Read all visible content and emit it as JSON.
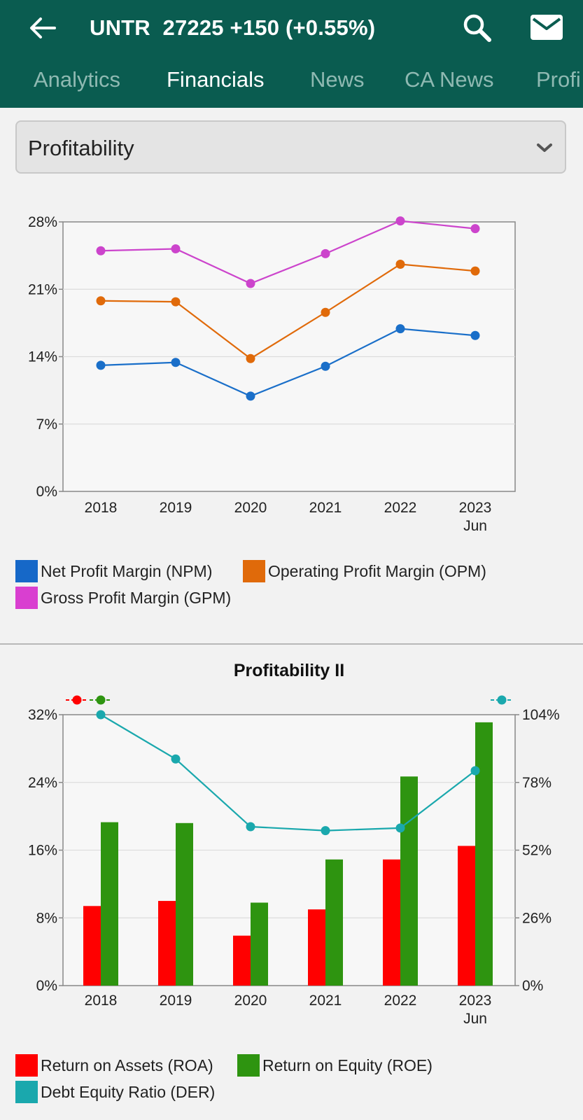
{
  "header": {
    "ticker_line": "UNTR  27225 +150 (+0.55%)",
    "back_icon": "arrow-left-icon",
    "search_icon": "search-icon",
    "mail_icon": "mail-icon",
    "bg_color": "#0a5c50"
  },
  "tabs": [
    {
      "label": "Analytics",
      "active": false
    },
    {
      "label": "Financials",
      "active": true
    },
    {
      "label": "News",
      "active": false
    },
    {
      "label": "CA News",
      "active": false
    },
    {
      "label": "Profi",
      "active": false
    }
  ],
  "dropdown": {
    "selected": "Profitability",
    "icon": "chevron-down-icon"
  },
  "chart_data": [
    {
      "type": "line",
      "title": "",
      "categories": [
        "2018",
        "2019",
        "2020",
        "2021",
        "2022",
        "2023\nJun"
      ],
      "y_ticks": [
        "0%",
        "7%",
        "14%",
        "21%",
        "28%"
      ],
      "ylim": [
        0,
        28
      ],
      "unit": "%",
      "grid": true,
      "legend_position": "bottom",
      "series": [
        {
          "name": "Net Profit Margin (NPM)",
          "color": "#1a6fc9",
          "values": [
            13.1,
            13.4,
            9.9,
            13.0,
            16.9,
            16.2
          ]
        },
        {
          "name": "Operating Profit Margin (OPM)",
          "color": "#e06a0a",
          "values": [
            19.8,
            19.7,
            13.8,
            18.6,
            23.6,
            22.9
          ]
        },
        {
          "name": "Gross Profit Margin (GPM)",
          "color": "#cc44cc",
          "values": [
            25.0,
            25.2,
            21.6,
            24.7,
            28.1,
            27.3
          ]
        }
      ],
      "legend_swatches": [
        "#1668c8",
        "#e06a0a",
        "#d93fd0"
      ]
    },
    {
      "type": "bar",
      "title": "Profitability II",
      "categories": [
        "2018",
        "2019",
        "2020",
        "2021",
        "2022",
        "2023\nJun"
      ],
      "y_ticks": [
        "0%",
        "8%",
        "16%",
        "24%",
        "32%"
      ],
      "y2_ticks": [
        "0%",
        "26%",
        "52%",
        "78%",
        "104%"
      ],
      "ylim": [
        0,
        32
      ],
      "y2lim": [
        0,
        104
      ],
      "grid": true,
      "legend_position": "bottom",
      "series": [
        {
          "name": "Return on Assets (ROA)",
          "color": "#ff0000",
          "axis": "left",
          "kind": "bar",
          "values": [
            9.4,
            10.0,
            5.9,
            9.0,
            14.9,
            16.5
          ]
        },
        {
          "name": "Return on Equity (ROE)",
          "color": "#2e9410",
          "axis": "left",
          "kind": "bar",
          "values": [
            19.3,
            19.2,
            9.8,
            14.9,
            24.7,
            31.1
          ]
        },
        {
          "name": "Debt Equity Ratio (DER)",
          "color": "#1aa8ad",
          "axis": "right",
          "kind": "line",
          "values": [
            104,
            87,
            61,
            59.5,
            60.5,
            82.5
          ]
        }
      ]
    }
  ]
}
